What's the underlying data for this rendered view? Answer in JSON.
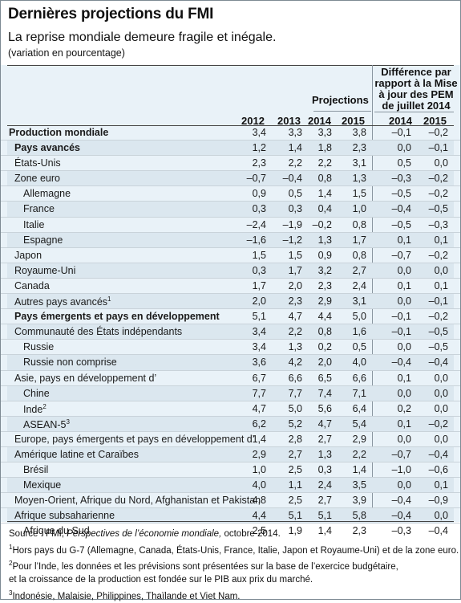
{
  "header": {
    "title": "Dernières projections du FMI",
    "subtitle": "La reprise mondiale demeure fragile et inégale.",
    "unit": "(variation en pourcentage)"
  },
  "columns": {
    "projections_label": "Projections",
    "difference_label_lines": [
      "Différence par",
      "rapport à la Mise",
      "à jour des PEM",
      "de juillet 2014"
    ],
    "years": [
      "2012",
      "2013",
      "2014",
      "2015",
      "2014",
      "2015"
    ]
  },
  "rows": [
    {
      "label": "Production mondiale",
      "bold": true,
      "indent": 0,
      "values": [
        "3,4",
        "3,3",
        "3,3",
        "3,8",
        "–0,1",
        "–0,2"
      ]
    },
    {
      "label": "Pays avancés",
      "bold": true,
      "indent": 1,
      "values": [
        "1,2",
        "1,4",
        "1,8",
        "2,3",
        "0,0",
        "–0,1"
      ]
    },
    {
      "label": "États-Unis",
      "indent": 1,
      "values": [
        "2,3",
        "2,2",
        "2,2",
        "3,1",
        "0,5",
        "0,0"
      ]
    },
    {
      "label": "Zone euro",
      "indent": 1,
      "values": [
        "–0,7",
        "–0,4",
        "0,8",
        "1,3",
        "–0,3",
        "–0,2"
      ]
    },
    {
      "label": "Allemagne",
      "indent": 2,
      "values": [
        "0,9",
        "0,5",
        "1,4",
        "1,5",
        "–0,5",
        "–0,2"
      ]
    },
    {
      "label": "France",
      "indent": 2,
      "values": [
        "0,3",
        "0,3",
        "0,4",
        "1,0",
        "–0,4",
        "–0,5"
      ]
    },
    {
      "label": "Italie",
      "indent": 2,
      "values": [
        "–2,4",
        "–1,9",
        "–0,2",
        "0,8",
        "–0,5",
        "–0,3"
      ]
    },
    {
      "label": "Espagne",
      "indent": 2,
      "values": [
        "–1,6",
        "–1,2",
        "1,3",
        "1,7",
        "0,1",
        "0,1"
      ]
    },
    {
      "label": "Japon",
      "indent": 1,
      "values": [
        "1,5",
        "1,5",
        "0,9",
        "0,8",
        "–0,7",
        "–0,2"
      ]
    },
    {
      "label": "Royaume-Uni",
      "indent": 1,
      "values": [
        "0,3",
        "1,7",
        "3,2",
        "2,7",
        "0,0",
        "0,0"
      ]
    },
    {
      "label": "Canada",
      "indent": 1,
      "values": [
        "1,7",
        "2,0",
        "2,3",
        "2,4",
        "0,1",
        "0,1"
      ]
    },
    {
      "label": "Autres pays avancés",
      "sup": "1",
      "indent": 1,
      "values": [
        "2,0",
        "2,3",
        "2,9",
        "3,1",
        "0,0",
        "–0,1"
      ]
    },
    {
      "label": "Pays émergents et pays en développement",
      "bold": true,
      "indent": 1,
      "values": [
        "5,1",
        "4,7",
        "4,4",
        "5,0",
        "–0,1",
        "–0,2"
      ]
    },
    {
      "label": "Communauté des États indépendants",
      "indent": 1,
      "values": [
        "3,4",
        "2,2",
        "0,8",
        "1,6",
        "–0,1",
        "–0,5"
      ]
    },
    {
      "label": "Russie",
      "indent": 2,
      "values": [
        "3,4",
        "1,3",
        "0,2",
        "0,5",
        "0,0",
        "–0,5"
      ]
    },
    {
      "label": "Russie non comprise",
      "indent": 2,
      "values": [
        "3,6",
        "4,2",
        "2,0",
        "4,0",
        "–0,4",
        "–0,4"
      ]
    },
    {
      "label": "Asie, pays en développement d’",
      "indent": 1,
      "values": [
        "6,7",
        "6,6",
        "6,5",
        "6,6",
        "0,1",
        "0,0"
      ]
    },
    {
      "label": "Chine",
      "indent": 2,
      "values": [
        "7,7",
        "7,7",
        "7,4",
        "7,1",
        "0,0",
        "0,0"
      ]
    },
    {
      "label": "Inde",
      "sup": "2",
      "indent": 2,
      "values": [
        "4,7",
        "5,0",
        "5,6",
        "6,4",
        "0,2",
        "0,0"
      ]
    },
    {
      "label": "ASEAN-5",
      "sup": "3",
      "indent": 2,
      "values": [
        "6,2",
        "5,2",
        "4,7",
        "5,4",
        "0,1",
        "–0,2"
      ]
    },
    {
      "label": "Europe, pays émergents et pays en développement d’",
      "indent": 1,
      "values": [
        "1,4",
        "2,8",
        "2,7",
        "2,9",
        "0,0",
        "0,0"
      ]
    },
    {
      "label": "Amérique latine et Caraïbes",
      "indent": 1,
      "values": [
        "2,9",
        "2,7",
        "1,3",
        "2,2",
        "–0,7",
        "–0,4"
      ]
    },
    {
      "label": "Brésil",
      "indent": 2,
      "values": [
        "1,0",
        "2,5",
        "0,3",
        "1,4",
        "–1,0",
        "–0,6"
      ]
    },
    {
      "label": "Mexique",
      "indent": 2,
      "values": [
        "4,0",
        "1,1",
        "2,4",
        "3,5",
        "0,0",
        "0,1"
      ]
    },
    {
      "label": "Moyen-Orient, Afrique du Nord, Afghanistan et Pakistan",
      "indent": 1,
      "values": [
        "4,8",
        "2,5",
        "2,7",
        "3,9",
        "–0,4",
        "–0,9"
      ]
    },
    {
      "label": "Afrique subsaharienne",
      "indent": 1,
      "values": [
        "4,4",
        "5,1",
        "5,1",
        "5,8",
        "–0,4",
        "0,0"
      ]
    },
    {
      "label": "Afrique du Sud",
      "indent": 2,
      "values": [
        "2,5",
        "1,9",
        "1,4",
        "2,3",
        "–0,3",
        "–0,4"
      ]
    }
  ],
  "notes": {
    "source_prefix": "Source : FMI, ",
    "source_title": "Perspectives de l’économie mondiale,",
    "source_suffix": " octobre 2014.",
    "note1_mark": "1",
    "note1": "Hors pays du G-7 (Allemagne, Canada, États-Unis, France, Italie, Japon et Royaume-Uni) et de la zone euro.",
    "note2_mark": "2",
    "note2": "Pour l’Inde, les données et les prévisions sont présentées sur la base de l’exercice budgétaire,",
    "note2b": "et la croissance de la production est fondée sur le PIB aux prix du marché.",
    "note3_mark": "3",
    "note3": "Indonésie, Malaisie, Philippines, Thaïlande et Viet Nam."
  }
}
